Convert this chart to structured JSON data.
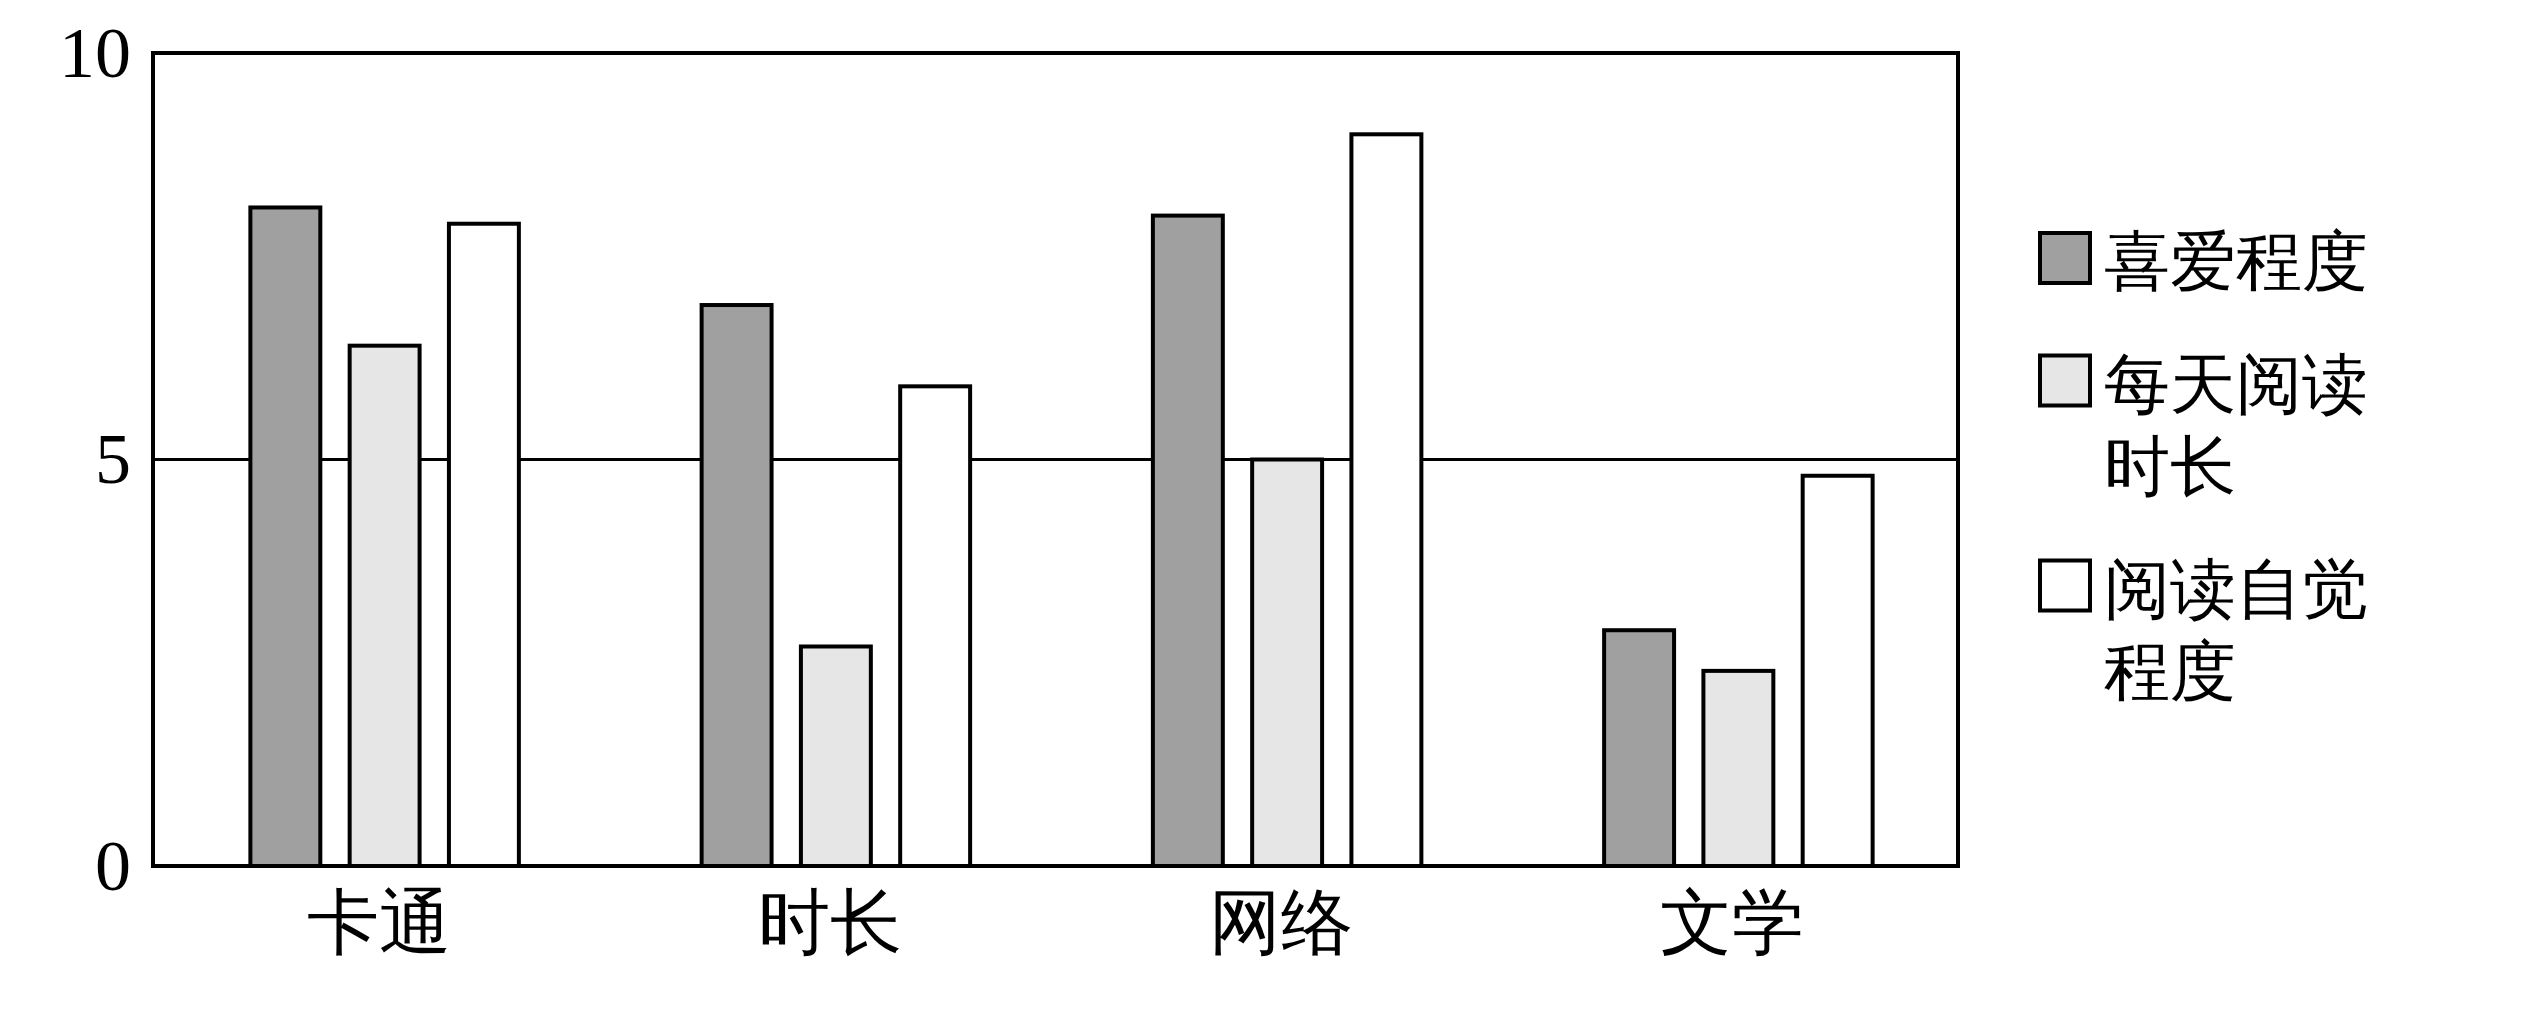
{
  "chart_data": {
    "type": "bar",
    "categories": [
      "卡通",
      "时长",
      "网络",
      "文学"
    ],
    "series": [
      {
        "name": "喜爱程度",
        "color": "#a0a0a0",
        "values": [
          8.1,
          6.9,
          8.0,
          2.9
        ]
      },
      {
        "name": "每天阅读时长",
        "color": "#e6e6e6",
        "values": [
          6.4,
          2.7,
          5.0,
          2.4
        ]
      },
      {
        "name": "阅读自觉程度",
        "color": "#ffffff",
        "values": [
          7.9,
          5.9,
          9.0,
          4.8
        ]
      }
    ],
    "ylim": [
      0,
      10
    ],
    "yticks": [
      0,
      5,
      10
    ],
    "grid": "y",
    "legend": "right"
  }
}
